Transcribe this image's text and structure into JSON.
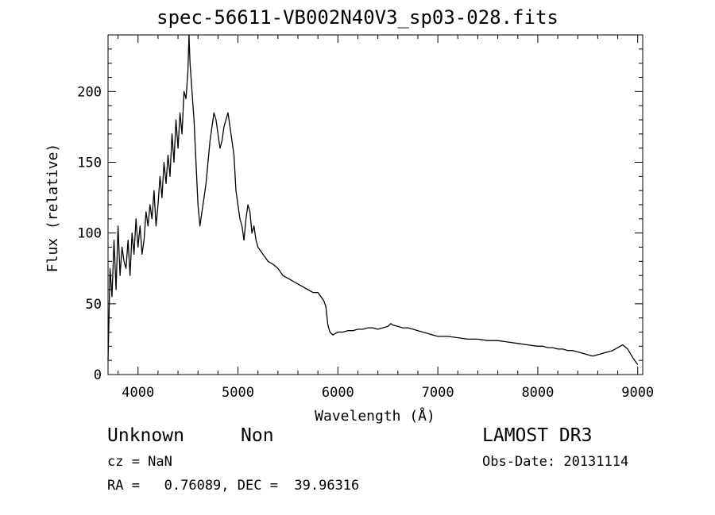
{
  "chart_data": {
    "type": "line",
    "title": "spec-56611-VB002N40V3_sp03-028.fits",
    "xlabel": "Wavelength (Å)",
    "ylabel": "Flux (relative)",
    "xlim": [
      3700,
      9050
    ],
    "ylim": [
      0,
      240
    ],
    "xticks": [
      4000,
      5000,
      6000,
      7000,
      8000,
      9000
    ],
    "yticks": [
      0,
      50,
      100,
      150,
      200
    ],
    "grid": false,
    "x": [
      3700,
      3720,
      3740,
      3760,
      3780,
      3800,
      3820,
      3840,
      3860,
      3880,
      3900,
      3920,
      3940,
      3960,
      3980,
      4000,
      4020,
      4040,
      4060,
      4080,
      4100,
      4120,
      4140,
      4160,
      4180,
      4200,
      4220,
      4240,
      4260,
      4280,
      4300,
      4320,
      4340,
      4360,
      4380,
      4400,
      4420,
      4440,
      4460,
      4480,
      4500,
      4510,
      4520,
      4540,
      4560,
      4580,
      4600,
      4620,
      4640,
      4660,
      4680,
      4700,
      4720,
      4740,
      4760,
      4780,
      4800,
      4820,
      4840,
      4860,
      4880,
      4900,
      4920,
      4940,
      4960,
      4980,
      5000,
      5020,
      5040,
      5060,
      5080,
      5100,
      5120,
      5140,
      5160,
      5180,
      5200,
      5250,
      5300,
      5350,
      5400,
      5450,
      5500,
      5550,
      5600,
      5650,
      5700,
      5750,
      5800,
      5830,
      5860,
      5880,
      5900,
      5920,
      5950,
      6000,
      6050,
      6100,
      6150,
      6200,
      6250,
      6300,
      6350,
      6400,
      6450,
      6500,
      6530,
      6550,
      6600,
      6650,
      6700,
      6750,
      6800,
      6850,
      6900,
      6950,
      7000,
      7100,
      7200,
      7300,
      7400,
      7500,
      7600,
      7700,
      7800,
      7900,
      8000,
      8050,
      8100,
      8150,
      8200,
      8250,
      8300,
      8350,
      8400,
      8450,
      8500,
      8550,
      8600,
      8650,
      8700,
      8750,
      8800,
      8850,
      8900,
      8950,
      9000
    ],
    "values": [
      10,
      75,
      55,
      95,
      60,
      105,
      70,
      90,
      80,
      75,
      95,
      70,
      100,
      85,
      110,
      90,
      105,
      85,
      95,
      115,
      105,
      120,
      110,
      130,
      105,
      120,
      140,
      125,
      150,
      135,
      155,
      140,
      170,
      150,
      180,
      160,
      185,
      170,
      200,
      195,
      215,
      240,
      220,
      200,
      180,
      150,
      120,
      105,
      115,
      125,
      135,
      150,
      165,
      175,
      185,
      180,
      170,
      160,
      165,
      175,
      180,
      185,
      175,
      165,
      155,
      130,
      120,
      110,
      105,
      95,
      110,
      120,
      115,
      100,
      105,
      95,
      90,
      85,
      80,
      78,
      75,
      70,
      68,
      66,
      64,
      62,
      60,
      58,
      58,
      55,
      52,
      48,
      35,
      30,
      28,
      30,
      30,
      31,
      31,
      32,
      32,
      33,
      33,
      32,
      33,
      34,
      36,
      35,
      34,
      33,
      33,
      32,
      31,
      30,
      29,
      28,
      27,
      27,
      26,
      25,
      25,
      24,
      24,
      23,
      22,
      21,
      20,
      20,
      19,
      19,
      18,
      18,
      17,
      17,
      16,
      15,
      14,
      13,
      14,
      15,
      16,
      17,
      19,
      21,
      18,
      12,
      7
    ]
  },
  "info": {
    "obj_class": "Unknown",
    "obj_subclass": "Non",
    "survey": "LAMOST DR3",
    "cz": "cz = NaN",
    "obs_date": "Obs-Date: 20131114",
    "radec": "RA =   0.76089, DEC =  39.96316"
  }
}
